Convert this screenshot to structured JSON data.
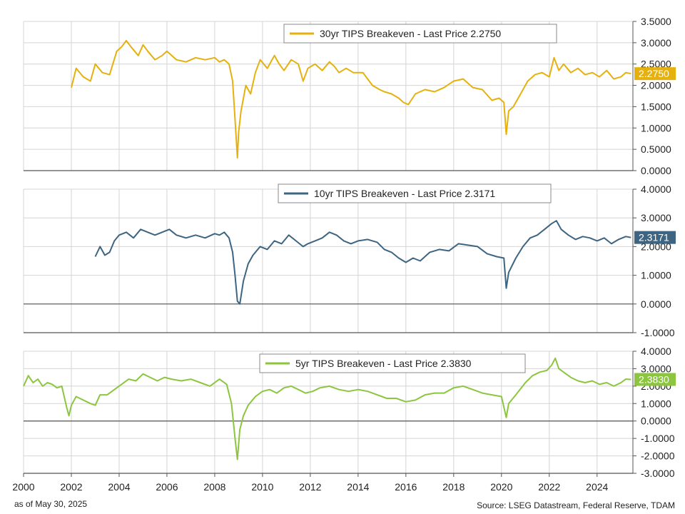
{
  "chart_data": [
    {
      "type": "line",
      "ylim": [
        0,
        3.5
      ],
      "yticks": [
        "3.5000",
        "3.0000",
        "2.5000",
        "2.0000",
        "1.5000",
        "1.0000",
        "0.5000",
        "0.0000"
      ],
      "ytick_values": [
        3.5,
        3.0,
        2.5,
        2.0,
        1.5,
        1.0,
        0.5,
        0.0
      ],
      "grid": true,
      "legend_position": "top-center",
      "series": [
        {
          "name": "30yr TIPS Breakeven - Last Price",
          "last_value_text": "2.2750",
          "last_value": 2.275,
          "color": "#e6b10e",
          "x": [
            2002.0,
            2002.2,
            2002.5,
            2002.8,
            2003.0,
            2003.3,
            2003.6,
            2003.9,
            2004.1,
            2004.3,
            2004.5,
            2004.8,
            2005.0,
            2005.2,
            2005.5,
            2005.8,
            2006.0,
            2006.4,
            2006.8,
            2007.2,
            2007.6,
            2008.0,
            2008.2,
            2008.4,
            2008.6,
            2008.75,
            2008.85,
            2008.95,
            2009.0,
            2009.1,
            2009.3,
            2009.5,
            2009.7,
            2009.9,
            2010.2,
            2010.5,
            2010.7,
            2010.9,
            2011.2,
            2011.5,
            2011.7,
            2011.9,
            2012.2,
            2012.5,
            2012.8,
            2013.0,
            2013.2,
            2013.5,
            2013.8,
            2014.2,
            2014.6,
            2014.9,
            2015.1,
            2015.4,
            2015.7,
            2015.9,
            2016.1,
            2016.4,
            2016.8,
            2017.2,
            2017.6,
            2018.0,
            2018.4,
            2018.8,
            2019.2,
            2019.6,
            2019.9,
            2020.1,
            2020.2,
            2020.3,
            2020.5,
            2020.8,
            2021.1,
            2021.4,
            2021.7,
            2022.0,
            2022.2,
            2022.4,
            2022.6,
            2022.9,
            2023.2,
            2023.5,
            2023.8,
            2024.1,
            2024.4,
            2024.7,
            2025.0,
            2025.2,
            2025.42
          ],
          "y": [
            1.95,
            2.4,
            2.2,
            2.1,
            2.5,
            2.3,
            2.25,
            2.8,
            2.9,
            3.05,
            2.9,
            2.7,
            2.95,
            2.8,
            2.6,
            2.7,
            2.8,
            2.6,
            2.55,
            2.65,
            2.6,
            2.65,
            2.55,
            2.6,
            2.5,
            2.1,
            1.2,
            0.3,
            0.9,
            1.4,
            2.0,
            1.8,
            2.3,
            2.6,
            2.4,
            2.7,
            2.5,
            2.35,
            2.6,
            2.5,
            2.1,
            2.4,
            2.5,
            2.35,
            2.55,
            2.45,
            2.3,
            2.4,
            2.3,
            2.3,
            2.0,
            1.9,
            1.85,
            1.8,
            1.7,
            1.6,
            1.55,
            1.8,
            1.9,
            1.85,
            1.95,
            2.1,
            2.15,
            1.95,
            1.9,
            1.65,
            1.7,
            1.6,
            0.85,
            1.4,
            1.5,
            1.8,
            2.1,
            2.25,
            2.3,
            2.2,
            2.65,
            2.35,
            2.5,
            2.3,
            2.4,
            2.25,
            2.3,
            2.2,
            2.35,
            2.15,
            2.2,
            2.3,
            2.275
          ]
        }
      ]
    },
    {
      "type": "line",
      "ylim": [
        -1,
        4
      ],
      "yticks": [
        "4.0000",
        "3.0000",
        "2.0000",
        "1.0000",
        "0.0000",
        "-1.0000"
      ],
      "ytick_values": [
        4,
        3,
        2,
        1,
        0,
        -1
      ],
      "grid": true,
      "legend_position": "top-center",
      "series": [
        {
          "name": "10yr TIPS Breakeven - Last Price",
          "last_value_text": "2.3171",
          "last_value": 2.3171,
          "color": "#3d6582",
          "x": [
            2003.0,
            2003.2,
            2003.4,
            2003.6,
            2003.8,
            2004.0,
            2004.3,
            2004.6,
            2004.9,
            2005.2,
            2005.5,
            2005.8,
            2006.1,
            2006.4,
            2006.8,
            2007.2,
            2007.6,
            2008.0,
            2008.2,
            2008.4,
            2008.6,
            2008.75,
            2008.85,
            2008.95,
            2009.05,
            2009.2,
            2009.4,
            2009.6,
            2009.9,
            2010.2,
            2010.5,
            2010.8,
            2011.1,
            2011.4,
            2011.7,
            2011.9,
            2012.2,
            2012.5,
            2012.8,
            2013.1,
            2013.4,
            2013.7,
            2014.0,
            2014.4,
            2014.8,
            2015.1,
            2015.4,
            2015.7,
            2016.0,
            2016.3,
            2016.6,
            2017.0,
            2017.4,
            2017.8,
            2018.2,
            2018.6,
            2019.0,
            2019.4,
            2019.8,
            2020.1,
            2020.2,
            2020.3,
            2020.6,
            2020.9,
            2021.2,
            2021.5,
            2021.8,
            2022.1,
            2022.3,
            2022.5,
            2022.8,
            2023.1,
            2023.4,
            2023.7,
            2024.0,
            2024.3,
            2024.6,
            2024.9,
            2025.2,
            2025.42
          ],
          "y": [
            1.65,
            2.0,
            1.7,
            1.8,
            2.2,
            2.4,
            2.5,
            2.3,
            2.6,
            2.5,
            2.4,
            2.5,
            2.6,
            2.4,
            2.3,
            2.4,
            2.3,
            2.45,
            2.4,
            2.5,
            2.3,
            1.8,
            1.0,
            0.1,
            0.0,
            0.8,
            1.4,
            1.7,
            2.0,
            1.9,
            2.2,
            2.1,
            2.4,
            2.2,
            2.0,
            2.1,
            2.2,
            2.3,
            2.5,
            2.4,
            2.2,
            2.1,
            2.2,
            2.25,
            2.15,
            1.9,
            1.8,
            1.6,
            1.45,
            1.6,
            1.5,
            1.8,
            1.9,
            1.85,
            2.1,
            2.05,
            2.0,
            1.75,
            1.65,
            1.6,
            0.55,
            1.1,
            1.6,
            2.0,
            2.3,
            2.4,
            2.6,
            2.8,
            2.9,
            2.6,
            2.4,
            2.25,
            2.35,
            2.3,
            2.2,
            2.3,
            2.1,
            2.25,
            2.35,
            2.3171
          ]
        }
      ]
    },
    {
      "type": "line",
      "ylim": [
        -3,
        4
      ],
      "yticks": [
        "4.0000",
        "3.0000",
        "2.0000",
        "1.0000",
        "0.0000",
        "-1.0000",
        "-2.0000",
        "-3.0000"
      ],
      "ytick_values": [
        4,
        3,
        2,
        1,
        0,
        -1,
        -2,
        -3
      ],
      "grid": true,
      "legend_position": "top-center",
      "series": [
        {
          "name": "5yr TIPS Breakeven - Last Price",
          "last_value_text": "2.3830",
          "last_value": 2.383,
          "color": "#8cc63f",
          "x": [
            2000.0,
            2000.2,
            2000.4,
            2000.6,
            2000.8,
            2001.0,
            2001.2,
            2001.4,
            2001.6,
            2001.8,
            2001.9,
            2002.0,
            2002.2,
            2002.5,
            2002.8,
            2003.0,
            2003.2,
            2003.5,
            2003.8,
            2004.1,
            2004.4,
            2004.7,
            2005.0,
            2005.3,
            2005.6,
            2005.9,
            2006.2,
            2006.6,
            2007.0,
            2007.4,
            2007.8,
            2008.2,
            2008.5,
            2008.7,
            2008.85,
            2008.95,
            2009.05,
            2009.2,
            2009.4,
            2009.7,
            2010.0,
            2010.3,
            2010.6,
            2010.9,
            2011.2,
            2011.5,
            2011.8,
            2012.1,
            2012.4,
            2012.8,
            2013.2,
            2013.6,
            2014.0,
            2014.4,
            2014.8,
            2015.2,
            2015.6,
            2016.0,
            2016.4,
            2016.8,
            2017.2,
            2017.6,
            2018.0,
            2018.4,
            2018.8,
            2019.2,
            2019.6,
            2020.0,
            2020.2,
            2020.3,
            2020.6,
            2021.0,
            2021.3,
            2021.6,
            2021.9,
            2022.1,
            2022.25,
            2022.4,
            2022.6,
            2022.9,
            2023.2,
            2023.5,
            2023.8,
            2024.1,
            2024.4,
            2024.7,
            2025.0,
            2025.2,
            2025.42
          ],
          "y": [
            2.0,
            2.6,
            2.2,
            2.4,
            2.0,
            2.2,
            2.1,
            1.9,
            2.0,
            0.8,
            0.3,
            0.9,
            1.4,
            1.2,
            1.0,
            0.9,
            1.5,
            1.5,
            1.8,
            2.1,
            2.4,
            2.3,
            2.7,
            2.5,
            2.3,
            2.5,
            2.4,
            2.3,
            2.4,
            2.2,
            2.0,
            2.4,
            2.1,
            1.0,
            -1.0,
            -2.2,
            -0.5,
            0.3,
            0.9,
            1.4,
            1.7,
            1.8,
            1.6,
            1.9,
            2.0,
            1.8,
            1.6,
            1.7,
            1.9,
            2.0,
            1.8,
            1.7,
            1.8,
            1.7,
            1.5,
            1.3,
            1.3,
            1.1,
            1.2,
            1.5,
            1.6,
            1.6,
            1.9,
            2.0,
            1.8,
            1.6,
            1.5,
            1.4,
            0.2,
            1.0,
            1.5,
            2.2,
            2.6,
            2.8,
            2.9,
            3.2,
            3.6,
            3.0,
            2.8,
            2.5,
            2.3,
            2.2,
            2.3,
            2.1,
            2.2,
            2.0,
            2.2,
            2.4,
            2.383
          ]
        }
      ]
    }
  ],
  "x_axis": {
    "xlim": [
      2000,
      2025.5
    ],
    "tick_values": [
      2000,
      2002,
      2004,
      2006,
      2008,
      2010,
      2012,
      2014,
      2016,
      2018,
      2020,
      2022,
      2024
    ],
    "tick_labels": [
      "2000",
      "2002",
      "2004",
      "2006",
      "2008",
      "2010",
      "2012",
      "2014",
      "2016",
      "2018",
      "2020",
      "2022",
      "2024"
    ]
  },
  "footer": {
    "date_note": "as of May 30, 2025",
    "source": "Source: LSEG Datastream, Federal Reserve, TDAM"
  },
  "colors": {
    "grid": "#d4d4d4",
    "axis": "#555555",
    "zero_line": "#555555"
  }
}
